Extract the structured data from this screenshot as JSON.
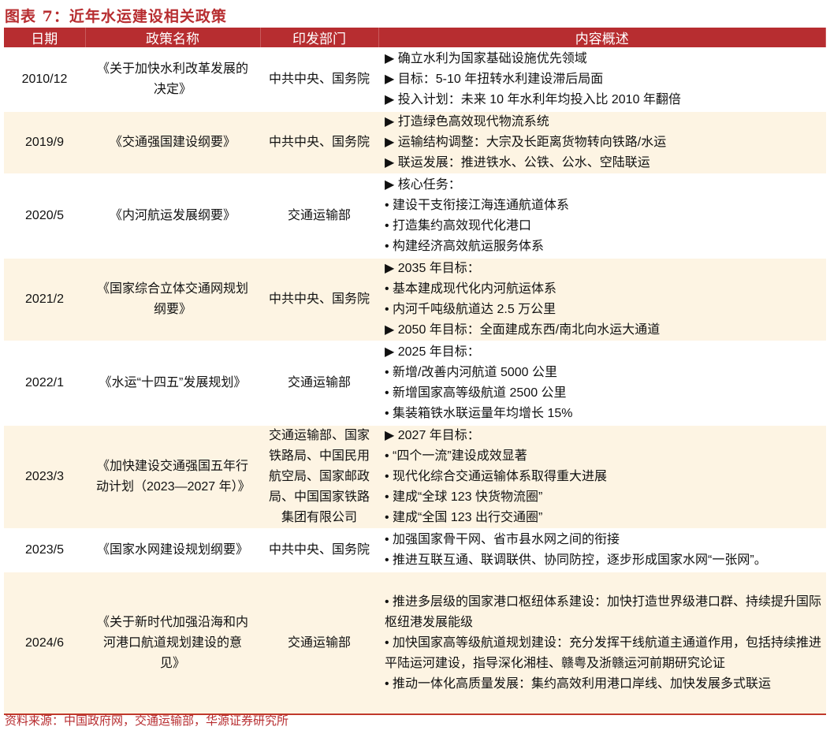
{
  "title": "图表 7：近年水运建设相关政策",
  "headers": [
    "日期",
    "政策名称",
    "印发部门",
    "内容概述"
  ],
  "rows": [
    {
      "date": "2010/12",
      "name": "《关于加快水利改革发展的决定》",
      "dept": "中共中央、国务院",
      "content": [
        "▶  确立水利为国家基础设施优先领域",
        "▶  目标：5-10 年扭转水利建设滞后局面",
        "▶  投入计划：未来 10 年水利年均投入比 2010 年翻倍"
      ]
    },
    {
      "date": "2019/9",
      "name": "《交通强国建设纲要》",
      "dept": "中共中央、国务院",
      "content": [
        "▶  打造绿色高效现代物流系统",
        "▶  运输结构调整：大宗及长距离货物转向铁路/水运",
        "▶  联运发展：推进铁水、公铁、公水、空陆联运"
      ]
    },
    {
      "date": "2020/5",
      "name": "《内河航运发展纲要》",
      "dept": "交通运输部",
      "content": [
        "▶  核心任务：",
        "•  建设干支衔接江海连通航道体系",
        "•  打造集约高效现代化港口",
        "•  构建经济高效航运服务体系"
      ]
    },
    {
      "date": "2021/2",
      "name": "《国家综合立体交通网规划纲要》",
      "dept": "中共中央、国务院",
      "content": [
        "▶ 2035 年目标：",
        "•  基本建成现代化内河航运体系",
        "•  内河千吨级航道达 2.5 万公里",
        "▶ 2050 年目标：全面建成东西/南北向水运大通道"
      ]
    },
    {
      "date": "2022/1",
      "name": "《水运“十四五”发展规划》",
      "dept": "交通运输部",
      "content": [
        "▶ 2025 年目标：",
        "•  新增/改善内河航道 5000 公里",
        "•  新增国家高等级航道 2500 公里",
        "•  集装箱铁水联运量年均增长 15%"
      ]
    },
    {
      "date": "2023/3",
      "name": "《加快建设交通强国五年行动计划（2023—2027 年）》",
      "dept": "交通运输部、国家铁路局、中国民用航空局、国家邮政局、中国国家铁路集团有限公司",
      "content": [
        "▶ 2027 年目标：",
        "•  “四个一流”建设成效显著",
        "•  现代化综合交通运输体系取得重大进展",
        "•  建成“全球 123 快货物流圈”",
        "•  建成“全国 123 出行交通圈”"
      ]
    },
    {
      "date": "2023/5",
      "name": "《国家水网建设规划纲要》",
      "dept": "中共中央、国务院",
      "content": [
        "•  加强国家骨干网、省市县水网之间的衔接",
        "•  推进互联互通、联调联供、协同防控，逐步形成国家水网“一张网”。"
      ]
    },
    {
      "date": "2024/6",
      "name": "《关于新时代加强沿海和内河港口航道规划建设的意见》",
      "dept": "交通运输部",
      "content": [
        "•  推进多层级的国家港口枢纽体系建设：加快打造世界级港口群、持续提升国际枢纽港发展能级",
        "•  加快国家高等级航道规划建设：充分发挥干线航道主通道作用，包括持续推进平陆运河建设，指导深化湘桂、赣粤及浙赣运河前期研究论证",
        "•  推动一体化高质量发展：集约高效利用港口岸线、加快发展多式联运"
      ]
    }
  ],
  "source": "资料来源：中国政府网，交通运输部，华源证券研究所",
  "colors": {
    "header": "#B72D30",
    "alt_row": "#FDF4E3"
  }
}
